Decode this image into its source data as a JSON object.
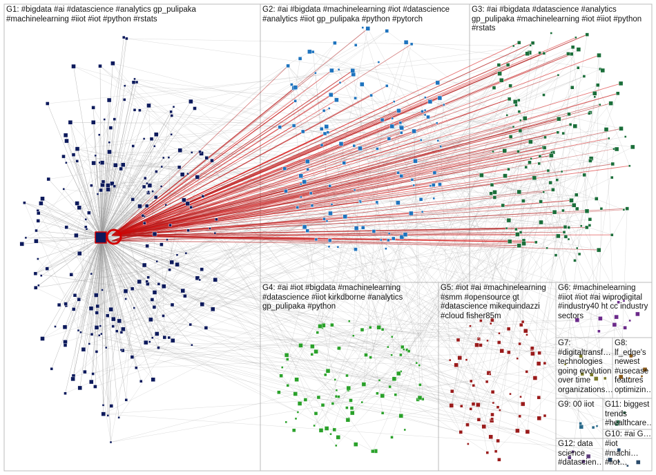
{
  "groups": [
    {
      "id": "G1",
      "label": "G1: #bigdata #ai #datascience #analytics gp_pulipaka #machinelearning #iiot #iot #python #rstats",
      "node_color": "#0d1a5c"
    },
    {
      "id": "G2",
      "label": "G2: #ai #bigdata #machinelearning #iot #datascience #analytics #iiot gp_pulipaka #python #pytorch",
      "node_color": "#1e73be"
    },
    {
      "id": "G3",
      "label": "G3: #ai #bigdata #datascience #analytics gp_pulipaka #machinelearning #iot #iiot #python #rstats",
      "node_color": "#1b6e3a"
    },
    {
      "id": "G4",
      "label": "G4: #ai #iot #bigdata #machinelearning #datascience #iiot kirkdborne #analytics gp_pulipaka #python",
      "node_color": "#2aa12a"
    },
    {
      "id": "G5",
      "label": "G5: #iot #ai #machinelearning #smm #opensource gt #datascience mikequindazzi #cloud fisher85m",
      "node_color": "#9a1b1b"
    },
    {
      "id": "G6",
      "label": "G6: #machinelearning #iiot #iot #ai wiprodigital #industry40 ht cc industry sectors",
      "node_color": "#6b2a8a"
    },
    {
      "id": "G7",
      "label": "G7: #digitaltransf… technologies going evolution over time organizations…",
      "node_color": "#7a7a2a"
    },
    {
      "id": "G8",
      "label": "G8: lf_edge's newest #usecase features optimizin…",
      "node_color": "#8a5a1a"
    },
    {
      "id": "G9",
      "label": "G9: 00 iiot",
      "node_color": "#2a6a8a"
    },
    {
      "id": "G10",
      "label": "G10: #ai G…",
      "node_color": "#4a4a4a"
    },
    {
      "id": "G11",
      "label": "G11: biggest trends #healthcare…",
      "node_color": "#3a7a5a"
    },
    {
      "id": "G12",
      "label": "G12: data science #datascien…",
      "node_color": "#5a3a7a"
    },
    {
      "id": "G13",
      "label": "#iot #machi… #iiot…",
      "node_color": "#2a4a6a"
    }
  ],
  "edge_colors": {
    "gray": "#9a9a9a",
    "red": "#d40000",
    "dark_red": "#b52020"
  },
  "hub_color": "#d40000"
}
